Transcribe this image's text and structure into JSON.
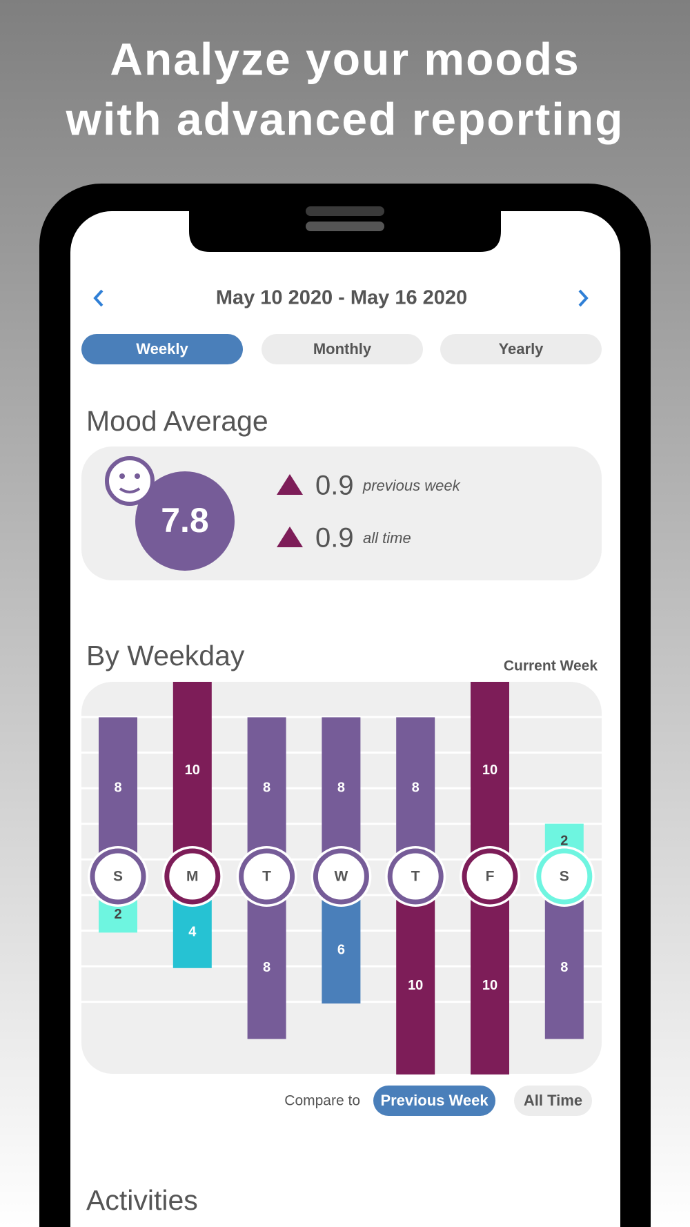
{
  "headline": [
    "Analyze your moods",
    "with advanced reporting"
  ],
  "date_range": "May 10 2020 - May 16 2020",
  "tabs": [
    "Weekly",
    "Monthly",
    "Yearly"
  ],
  "active_tab": 0,
  "mood_average": {
    "title": "Mood Average",
    "value": 7.8,
    "changes": [
      {
        "value": 0.9,
        "label": "previous week"
      },
      {
        "value": 0.9,
        "label": "all time"
      }
    ]
  },
  "by_weekday": {
    "title": "By Weekday",
    "legend": "Current Week",
    "days": [
      "S",
      "M",
      "T",
      "W",
      "T",
      "F",
      "S"
    ],
    "current": [
      8,
      10,
      8,
      8,
      8,
      10,
      2
    ],
    "current_colors": [
      "#765c98",
      "#7d1d58",
      "#765c98",
      "#765c98",
      "#765c98",
      "#7d1d58",
      "#6ef5e0"
    ],
    "previous": [
      2,
      4,
      8,
      6,
      10,
      10,
      8
    ],
    "previous_colors": [
      "#6ef5e0",
      "#26c2d3",
      "#765c98",
      "#4a7fba",
      "#7d1d58",
      "#7d1d58",
      "#765c98"
    ]
  },
  "compare": {
    "label": "Compare to",
    "options": [
      "Previous Week",
      "All Time"
    ],
    "active": 0
  },
  "activities": {
    "title": "Activities"
  }
}
